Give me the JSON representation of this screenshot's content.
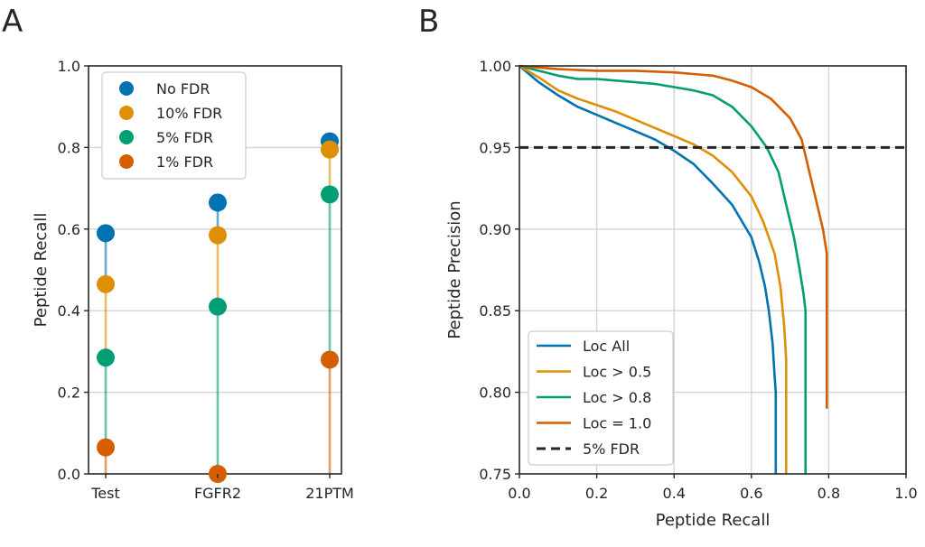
{
  "panels": {
    "a_letter": "A",
    "b_letter": "B"
  },
  "chart_data": [
    {
      "type": "scatter",
      "categories": [
        "Test",
        "FGFR2",
        "21PTM"
      ],
      "ylabel": "Peptide Recall",
      "xlabel": "",
      "ylim": [
        0,
        1.0
      ],
      "yticks": [
        "0.0",
        "0.2",
        "0.4",
        "0.6",
        "0.8",
        "1.0"
      ],
      "grid": "horizontal",
      "legend_position": "top-left",
      "series": [
        {
          "name": "No FDR",
          "color": "#0173b2",
          "values": [
            0.59,
            0.665,
            0.815
          ]
        },
        {
          "name": "10% FDR",
          "color": "#de8f05",
          "values": [
            0.465,
            0.585,
            0.795
          ]
        },
        {
          "name": "5% FDR",
          "color": "#029e73",
          "values": [
            0.285,
            0.41,
            0.685
          ]
        },
        {
          "name": "1% FDR",
          "color": "#d55e00",
          "values": [
            0.065,
            0.0,
            0.28
          ]
        }
      ]
    },
    {
      "type": "line",
      "xlabel": "Peptide Recall",
      "ylabel": "Peptide Precision",
      "xlim": [
        0,
        1.0
      ],
      "ylim": [
        0.75,
        1.0
      ],
      "xticks": [
        "0.0",
        "0.2",
        "0.4",
        "0.6",
        "0.8",
        "1.0"
      ],
      "yticks": [
        "0.75",
        "0.80",
        "0.85",
        "0.90",
        "0.95",
        "1.00"
      ],
      "grid": "both",
      "legend_position": "bottom-left",
      "series": [
        {
          "name": "Loc All",
          "color": "#0173b2",
          "points": [
            [
              0,
              1.0
            ],
            [
              0.05,
              0.99
            ],
            [
              0.1,
              0.982
            ],
            [
              0.15,
              0.975
            ],
            [
              0.2,
              0.97
            ],
            [
              0.25,
              0.965
            ],
            [
              0.3,
              0.96
            ],
            [
              0.35,
              0.955
            ],
            [
              0.4,
              0.948
            ],
            [
              0.45,
              0.94
            ],
            [
              0.5,
              0.928
            ],
            [
              0.55,
              0.915
            ],
            [
              0.6,
              0.895
            ],
            [
              0.62,
              0.88
            ],
            [
              0.635,
              0.865
            ],
            [
              0.645,
              0.85
            ],
            [
              0.655,
              0.83
            ],
            [
              0.66,
              0.81
            ],
            [
              0.663,
              0.8
            ],
            [
              0.663,
              0.75
            ]
          ]
        },
        {
          "name": "Loc > 0.5",
          "color": "#de8f05",
          "points": [
            [
              0,
              1.0
            ],
            [
              0.05,
              0.993
            ],
            [
              0.1,
              0.985
            ],
            [
              0.15,
              0.98
            ],
            [
              0.2,
              0.976
            ],
            [
              0.25,
              0.972
            ],
            [
              0.3,
              0.967
            ],
            [
              0.35,
              0.962
            ],
            [
              0.4,
              0.957
            ],
            [
              0.45,
              0.952
            ],
            [
              0.5,
              0.945
            ],
            [
              0.55,
              0.935
            ],
            [
              0.6,
              0.92
            ],
            [
              0.63,
              0.905
            ],
            [
              0.66,
              0.885
            ],
            [
              0.675,
              0.865
            ],
            [
              0.685,
              0.84
            ],
            [
              0.69,
              0.82
            ],
            [
              0.69,
              0.75
            ]
          ]
        },
        {
          "name": "Loc > 0.8",
          "color": "#029e73",
          "points": [
            [
              0,
              1.0
            ],
            [
              0.05,
              0.997
            ],
            [
              0.1,
              0.994
            ],
            [
              0.15,
              0.992
            ],
            [
              0.2,
              0.992
            ],
            [
              0.25,
              0.991
            ],
            [
              0.3,
              0.99
            ],
            [
              0.35,
              0.989
            ],
            [
              0.4,
              0.987
            ],
            [
              0.45,
              0.985
            ],
            [
              0.5,
              0.982
            ],
            [
              0.55,
              0.975
            ],
            [
              0.6,
              0.963
            ],
            [
              0.64,
              0.95
            ],
            [
              0.67,
              0.935
            ],
            [
              0.69,
              0.915
            ],
            [
              0.71,
              0.895
            ],
            [
              0.725,
              0.875
            ],
            [
              0.735,
              0.86
            ],
            [
              0.74,
              0.85
            ],
            [
              0.74,
              0.75
            ]
          ]
        },
        {
          "name": "Loc = 1.0",
          "color": "#d55e00",
          "points": [
            [
              0,
              1.0
            ],
            [
              0.05,
              0.999
            ],
            [
              0.1,
              0.998
            ],
            [
              0.2,
              0.997
            ],
            [
              0.3,
              0.997
            ],
            [
              0.4,
              0.996
            ],
            [
              0.45,
              0.995
            ],
            [
              0.5,
              0.994
            ],
            [
              0.55,
              0.991
            ],
            [
              0.6,
              0.987
            ],
            [
              0.65,
              0.98
            ],
            [
              0.7,
              0.968
            ],
            [
              0.73,
              0.955
            ],
            [
              0.75,
              0.935
            ],
            [
              0.77,
              0.915
            ],
            [
              0.785,
              0.9
            ],
            [
              0.795,
              0.885
            ],
            [
              0.795,
              0.875
            ],
            [
              0.795,
              0.79
            ]
          ]
        },
        {
          "name": "5% FDR",
          "color": "#262626",
          "dashed": true,
          "points": [
            [
              0,
              0.95
            ],
            [
              1.0,
              0.95
            ]
          ]
        }
      ]
    }
  ]
}
